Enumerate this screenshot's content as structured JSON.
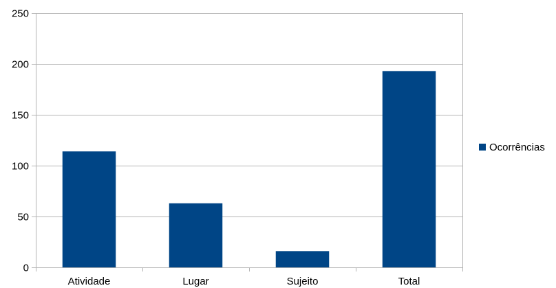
{
  "chart_data": {
    "type": "bar",
    "title": "",
    "xlabel": "",
    "ylabel": "",
    "categories": [
      "Atividade",
      "Lugar",
      "Sujeito",
      "Total"
    ],
    "series": [
      {
        "name": "Ocorrências",
        "values": [
          114,
          63,
          16,
          193
        ],
        "color": "#004586"
      }
    ],
    "ylim": [
      0,
      250
    ],
    "yticks": [
      0,
      50,
      100,
      150,
      200,
      250
    ],
    "grid": true,
    "gridColor": "#b3b3b3",
    "legend_position": "right"
  }
}
